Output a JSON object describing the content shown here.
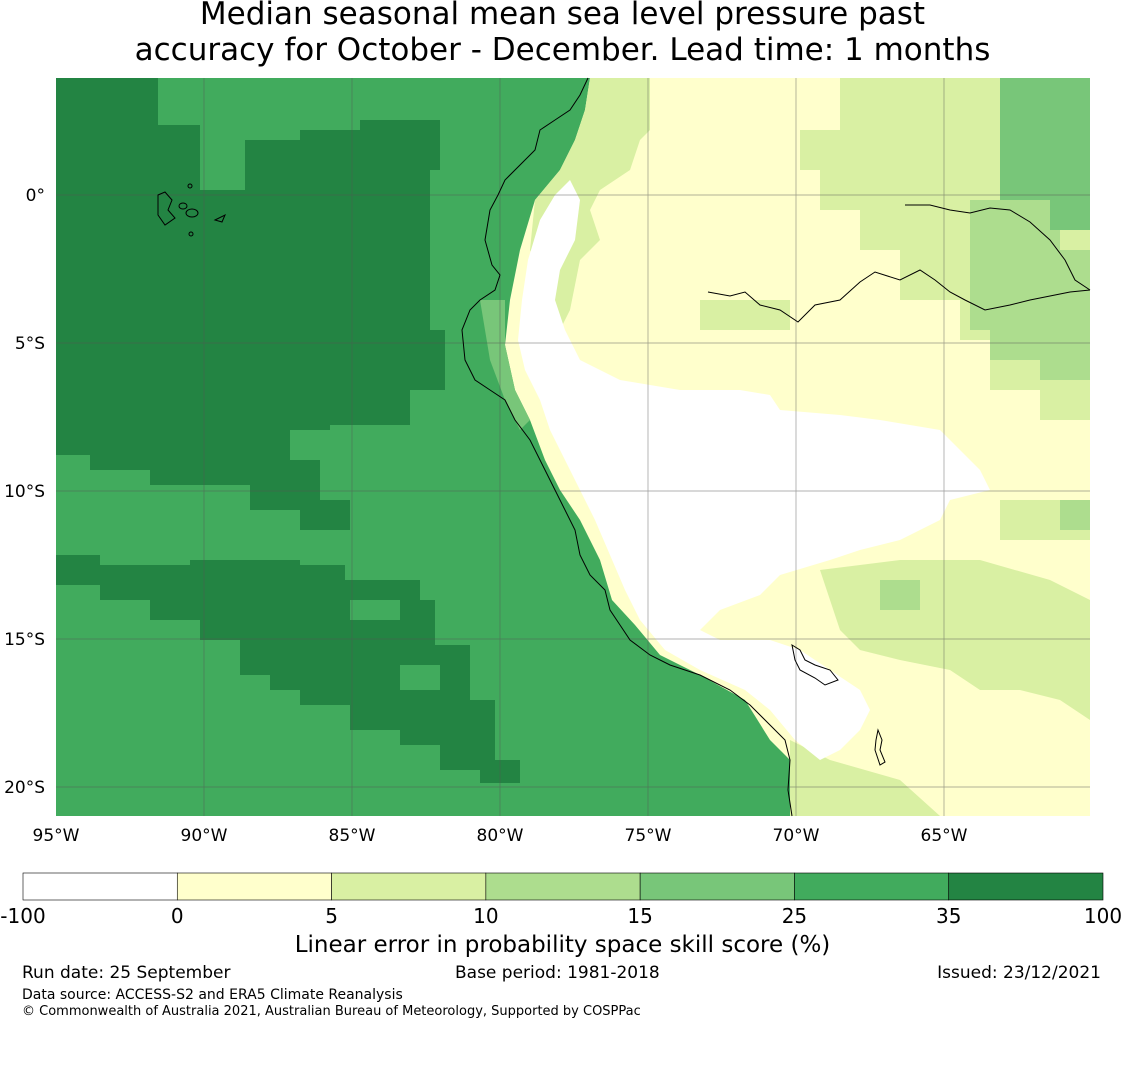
{
  "title_line1": "Median seasonal mean sea level pressure past",
  "title_line2": "accuracy for October - December. Lead time: 1 months",
  "lat_labels": [
    "0°",
    "5°S",
    "10°S",
    "15°S",
    "20°S"
  ],
  "lon_labels": [
    "95°W",
    "90°W",
    "85°W",
    "80°W",
    "75°W",
    "70°W",
    "65°W"
  ],
  "colorbar": {
    "ticks": [
      "-100",
      "0",
      "5",
      "10",
      "15",
      "25",
      "35",
      "100"
    ],
    "colors": [
      "#ffffff",
      "#ffffcc",
      "#d9f0a3",
      "#addd8e",
      "#78c679",
      "#41ab5d",
      "#238443"
    ],
    "title": "Linear error in probability space skill score (%)"
  },
  "footer": {
    "run_date": "Run date: 25 September",
    "base_period": "Base period: 1981-2018",
    "issued": "Issued: 23/12/2021",
    "data_source": "Data source: ACCESS-S2 and ERA5 Climate Reanalysis",
    "copyright": "© Commonwealth of Australia 2021, Australian Bureau of Meteorology, Supported by COSPPac"
  }
}
